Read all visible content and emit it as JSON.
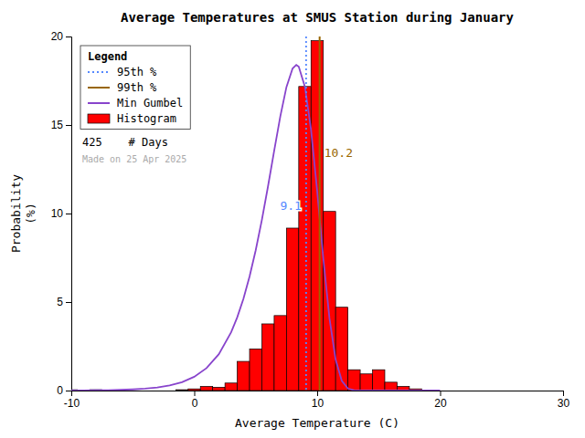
{
  "chart_data": {
    "type": "histogram",
    "title": "Average Temperatures at SMUS Station during January",
    "xlabel": "Average Temperature (C)",
    "ylabel": "Probability\n(%)",
    "xlim": [
      -10,
      30
    ],
    "ylim": [
      0,
      20
    ],
    "xticks": [
      -10,
      0,
      10,
      20,
      30
    ],
    "yticks": [
      0,
      5,
      10,
      15,
      20
    ],
    "grid": false,
    "legend": "upper left",
    "legend_title": "Legend",
    "annotations": [
      "425    # Days",
      "Made on 25 Apr 2025"
    ],
    "series": [
      {
        "name": "95th %",
        "type": "vline",
        "color": "#5588ff",
        "line_style": "dotted",
        "data_labels": true,
        "values": [
          9.1
        ]
      },
      {
        "name": "99th %",
        "type": "vline",
        "color": "#996600",
        "line_style": "solid",
        "data_labels": true,
        "values": [
          10.2
        ]
      },
      {
        "name": "Min Gumbel",
        "type": "line",
        "color": "#8844cc",
        "line_style": "solid",
        "x": [
          -10,
          -9,
          -8,
          -7,
          -6,
          -5,
          -4,
          -3,
          -2,
          -1,
          0,
          1,
          2,
          3,
          3.5,
          4,
          4.5,
          5,
          5.5,
          6,
          6.5,
          7,
          7.5,
          8,
          8.3,
          8.5,
          9,
          9.5,
          10,
          10.5,
          11,
          11.5,
          12,
          12.5,
          13,
          14,
          15,
          16,
          17,
          18,
          19,
          20
        ],
        "values": [
          0.005,
          0.009,
          0.014,
          0.024,
          0.039,
          0.065,
          0.106,
          0.175,
          0.288,
          0.474,
          0.776,
          1.266,
          2.053,
          3.292,
          4.143,
          5.184,
          6.44,
          7.925,
          9.635,
          11.535,
          13.537,
          15.487,
          17.145,
          18.197,
          18.394,
          18.299,
          17.167,
          14.731,
          11.272,
          7.447,
          4.074,
          1.749,
          0.55,
          0.116,
          0.015,
          0.0,
          0.0,
          0.0,
          0.0,
          0.0,
          0.0,
          0.0
        ]
      },
      {
        "name": "Histogram",
        "type": "histogram",
        "color": "#ff0000",
        "bins": [
          -10.5,
          -9.5,
          -8.5,
          -7.5,
          -6.5,
          -5.5,
          -4.5,
          -3.5,
          -2.5,
          -1.5,
          -0.5,
          0.5,
          1.5,
          2.5,
          3.5,
          4.5,
          5.5,
          6.5,
          7.5,
          8.5,
          9.5,
          10.5,
          11.5,
          12.5,
          13.5,
          14.5,
          15.5,
          16.5,
          17.5,
          18.5,
          19.5
        ],
        "values": [
          0.047,
          0.0,
          0.047,
          0.0,
          0.0,
          0.0,
          0.0,
          0.0,
          0.0,
          0.047,
          0.094,
          0.235,
          0.188,
          0.424,
          1.647,
          2.353,
          3.765,
          4.235,
          9.176,
          17.176,
          19.765,
          10.118,
          4.706,
          1.176,
          0.94,
          1.176,
          0.471,
          0.235,
          0.094,
          0.0
        ]
      }
    ]
  }
}
